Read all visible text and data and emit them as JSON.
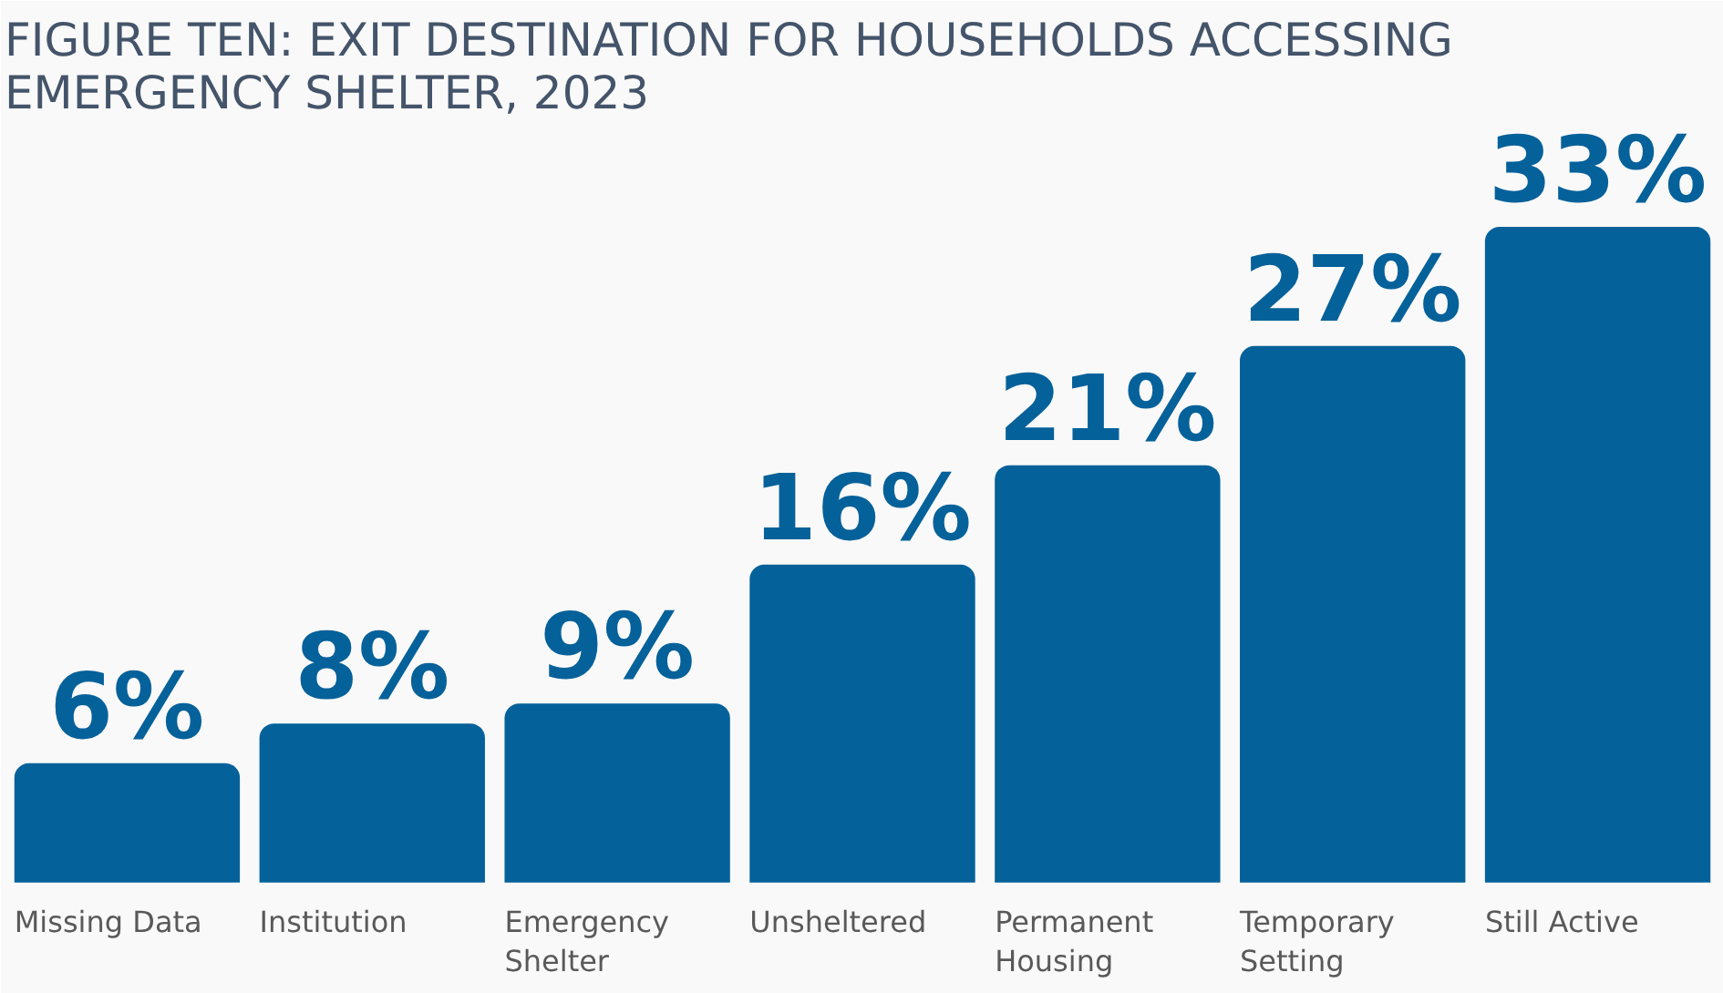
{
  "chart_data": {
    "type": "bar",
    "title": "FIGURE TEN: EXIT DESTINATION FOR HOUSEHOLDS ACCESSING EMERGENCY SHELTER, 2023",
    "categories": [
      "Missing Data",
      "Institution",
      "Emergency Shelter",
      "Unsheltered",
      "Permanent Housing",
      "Temporary Setting",
      "Still Active"
    ],
    "values": [
      6,
      8,
      9,
      16,
      21,
      27,
      33
    ],
    "value_labels": [
      "6%",
      "8%",
      "9%",
      "16%",
      "21%",
      "27%",
      "33%"
    ],
    "color": "#05619a",
    "grid": false
  }
}
